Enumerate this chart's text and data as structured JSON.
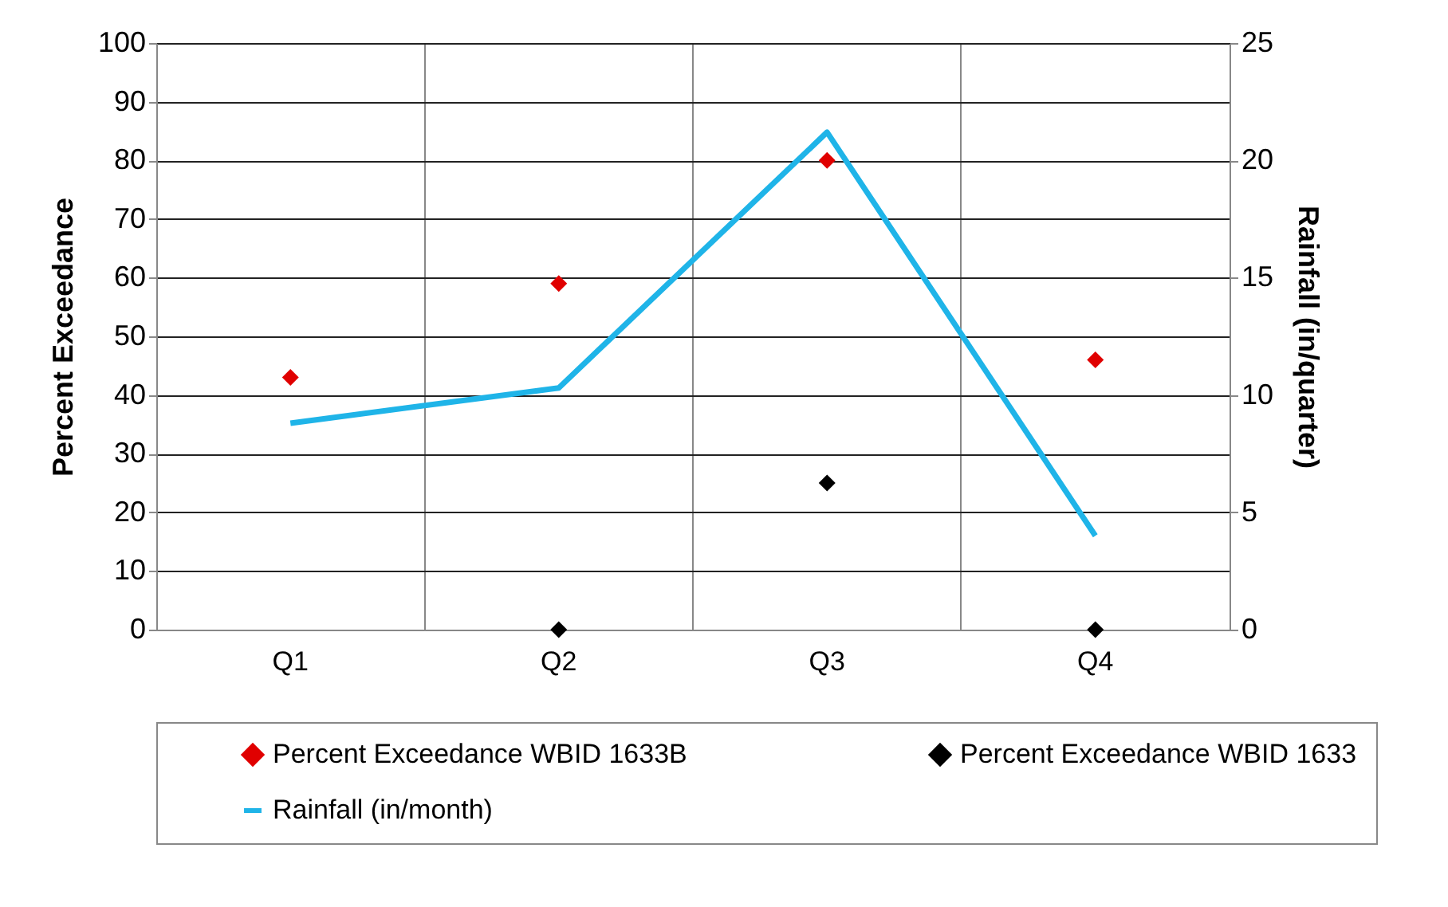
{
  "chart_data": {
    "type": "scatter",
    "ylabel": "Percent Exceedance",
    "y2label": "Rainfall (in/quarter)",
    "categories": [
      "Q1",
      "Q2",
      "Q3",
      "Q4"
    ],
    "series": [
      {
        "name": "Percent Exceedance WBID 1633B",
        "color": "#e00000",
        "marker": "diamond",
        "values": [
          43,
          59,
          80,
          46
        ]
      },
      {
        "name": "Percent Exceedance WBID 1633",
        "color": "#000000",
        "marker": "diamond",
        "values": [
          null,
          0,
          25,
          0
        ]
      },
      {
        "name": "Rainfall (in/month)",
        "type": "line",
        "axis": "y2",
        "color": "#1fb4e8",
        "marker": "none",
        "line_style": "solid",
        "values": [
          8.8,
          10.3,
          21.2,
          4.0
        ]
      }
    ],
    "ylim": [
      0,
      100
    ],
    "yticks": [
      0,
      10,
      20,
      30,
      40,
      50,
      60,
      70,
      80,
      90,
      100
    ],
    "y2lim": [
      0,
      25
    ],
    "y2ticks": [
      0,
      5,
      10,
      15,
      20,
      25
    ],
    "grid": true,
    "legend": "bottom"
  }
}
